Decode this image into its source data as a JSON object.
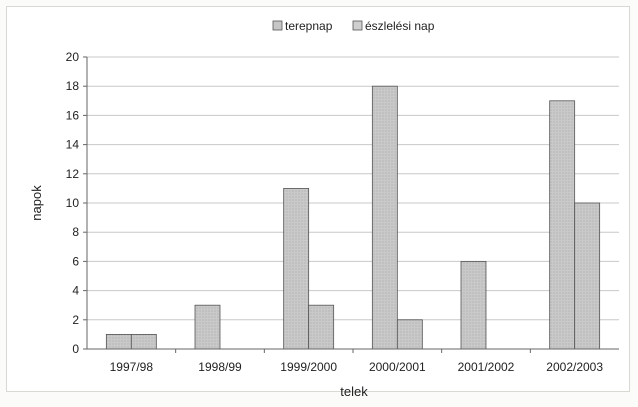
{
  "chart_data": {
    "type": "bar",
    "categories": [
      "1997/98",
      "1998/99",
      "1999/2000",
      "2000/2001",
      "2001/2002",
      "2002/2003"
    ],
    "series": [
      {
        "name": "terepnap",
        "values": [
          1,
          3,
          11,
          18,
          6,
          17
        ]
      },
      {
        "name": "észlelési nap",
        "values": [
          1,
          0,
          3,
          2,
          0,
          10
        ]
      }
    ],
    "title": "",
    "xlabel": "telek",
    "ylabel": "napok",
    "ylim": [
      0,
      20
    ],
    "yticks": [
      0,
      2,
      4,
      6,
      8,
      10,
      12,
      14,
      16,
      18,
      20
    ],
    "grid": true,
    "legend_position": "top",
    "colors": {
      "series_fill": [
        "#c6c6c6",
        "#cfcfcf"
      ],
      "bar_stroke": "#555555",
      "grid": "#c8c8c8",
      "axis": "#666666"
    }
  }
}
